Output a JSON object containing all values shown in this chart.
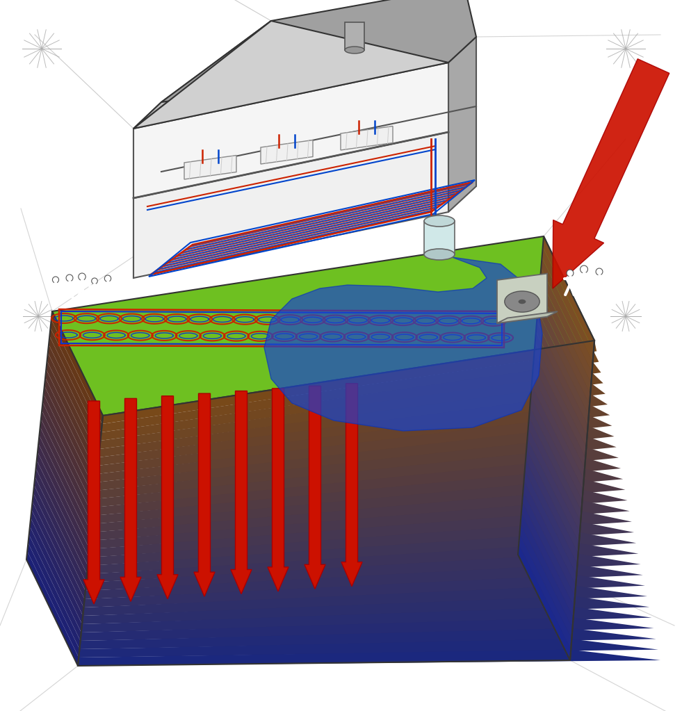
{
  "bg_color": "#ffffff",
  "ground_top_color": "#6ec021",
  "ground_front_top": "#8b5a1e",
  "ground_front_bot": "#1a2a8a",
  "ground_right_top": "#9b6a2e",
  "ground_right_bot": "#1a2aaa",
  "ground_left_top": "#7a4a18",
  "ground_left_bot": "#1a2a7a",
  "floor_heating_red": "#cc2200",
  "floor_heating_blue": "#0044cc",
  "geothermal_coil_red": "#cc2200",
  "geothermal_coil_blue": "#1133cc",
  "arrow_red": "#cc1100",
  "blue_flow": "#1a33cc",
  "heat_pump_color": "#c8d0c0",
  "house_wall_gray": "#b0b0b0",
  "house_cut_white": "#f0f0f0",
  "roof_gray": "#909090",
  "sketch_gray": "#888888",
  "people_white": "#ffffff"
}
